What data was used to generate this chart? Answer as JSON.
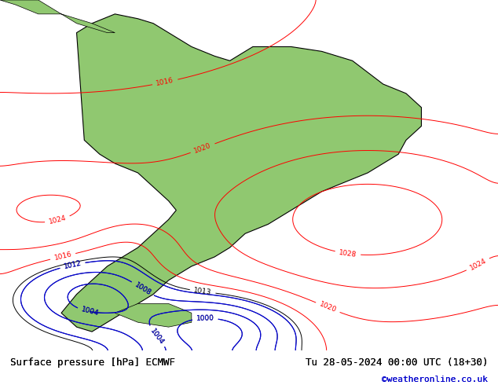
{
  "title_left": "Surface pressure [hPa] ECMWF",
  "title_right": "Tu 28-05-2024 00:00 UTC (18+30)",
  "copyright": "©weatheronline.co.uk",
  "background_color": "#c8d8e8",
  "land_color": "#90c870",
  "fig_width": 6.34,
  "fig_height": 4.9,
  "dpi": 100,
  "extent": [
    -90,
    -25,
    -60,
    15
  ],
  "bottom_bar_color": "#e8e8e8",
  "bottom_text_color": "#000000",
  "copyright_color": "#0000cc"
}
